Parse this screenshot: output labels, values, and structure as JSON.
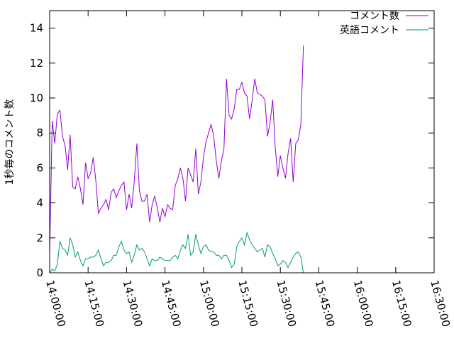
{
  "chart_data": {
    "type": "line",
    "title": "",
    "xlabel": "",
    "ylabel": "1秒毎のコメント数",
    "xlim": [
      "14:00:00",
      "16:30:00"
    ],
    "ylim": [
      0,
      15
    ],
    "xticks": [
      "14:00:00",
      "14:15:00",
      "14:30:00",
      "14:45:00",
      "15:00:00",
      "15:15:00",
      "15:30:00",
      "15:45:00",
      "16:00:00",
      "16:15:00",
      "16:30:00"
    ],
    "yticks": [
      0,
      2,
      4,
      6,
      8,
      10,
      12,
      14
    ],
    "grid": false,
    "legend": "top-right",
    "x_step_seconds": 60,
    "x_start": "14:00:00",
    "series": [
      {
        "name": "コメント数",
        "color": "#9400d3",
        "values": [
          1.0,
          8.7,
          7.4,
          9.1,
          9.3,
          7.8,
          7.3,
          5.9,
          7.9,
          4.9,
          4.8,
          5.5,
          4.8,
          3.9,
          6.3,
          5.4,
          5.7,
          6.6,
          5.3,
          3.4,
          3.7,
          3.9,
          4.2,
          3.6,
          4.6,
          4.8,
          4.3,
          4.7,
          5.0,
          5.2,
          3.6,
          4.5,
          3.7,
          5.2,
          7.4,
          4.7,
          4.1,
          4.1,
          4.5,
          2.9,
          3.9,
          4.4,
          3.7,
          2.9,
          3.7,
          3.2,
          3.9,
          3.7,
          3.6,
          5.0,
          5.4,
          6.0,
          5.4,
          4.1,
          6.0,
          5.6,
          5.2,
          7.1,
          4.5,
          5.2,
          6.6,
          7.5,
          8.0,
          8.5,
          7.8,
          6.4,
          5.4,
          6.4,
          7.1,
          11.1,
          9.0,
          8.8,
          9.4,
          10.5,
          10.5,
          10.9,
          10.3,
          10.1,
          8.8,
          9.9,
          11.1,
          10.3,
          10.2,
          10.1,
          9.9,
          7.8,
          8.6,
          9.9,
          7.2,
          5.5,
          6.7,
          6.0,
          5.4,
          6.8,
          7.7,
          5.2,
          7.4,
          7.6,
          8.5,
          13.0
        ]
      },
      {
        "name": "英語コメント",
        "color": "#009e73",
        "values": [
          0.0,
          0.2,
          0.1,
          0.5,
          1.8,
          1.4,
          1.3,
          1.0,
          2.0,
          1.6,
          0.9,
          1.2,
          0.7,
          0.4,
          0.8,
          0.8,
          0.9,
          0.9,
          1.0,
          1.3,
          0.8,
          0.4,
          0.6,
          0.6,
          0.7,
          1.0,
          1.0,
          1.5,
          1.8,
          1.3,
          1.1,
          1.2,
          0.6,
          1.0,
          1.6,
          1.3,
          1.4,
          1.2,
          0.8,
          0.4,
          0.8,
          0.7,
          0.7,
          0.9,
          0.8,
          0.7,
          0.7,
          0.7,
          0.9,
          1.0,
          0.8,
          1.3,
          1.6,
          1.4,
          2.2,
          1.0,
          1.2,
          2.2,
          1.6,
          1.1,
          1.5,
          1.6,
          1.3,
          1.2,
          1.2,
          1.0,
          1.0,
          0.8,
          1.0,
          1.0,
          0.7,
          0.3,
          0.5,
          1.5,
          1.8,
          2.0,
          1.6,
          2.3,
          1.9,
          1.6,
          1.4,
          1.2,
          1.3,
          1.4,
          0.9,
          1.6,
          1.5,
          1.1,
          0.8,
          0.4,
          0.5,
          0.7,
          0.6,
          0.3,
          0.6,
          0.9,
          1.1,
          1.2,
          0.9,
          0.0
        ]
      }
    ]
  }
}
